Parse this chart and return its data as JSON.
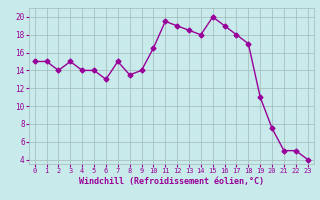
{
  "x": [
    0,
    1,
    2,
    3,
    4,
    5,
    6,
    7,
    8,
    9,
    10,
    11,
    12,
    13,
    14,
    15,
    16,
    17,
    18,
    19,
    20,
    21,
    22,
    23
  ],
  "y": [
    15,
    15,
    14,
    15,
    14,
    14,
    13,
    15,
    13.5,
    14,
    16.5,
    19.5,
    19,
    18.5,
    18,
    20,
    19,
    18,
    17,
    11,
    7.5,
    5,
    5,
    4
  ],
  "line_color": "#990099",
  "marker": "D",
  "marker_size": 2.5,
  "bg_color": "#c8eaea",
  "grid_color": "#a0b8b8",
  "xlabel": "Windchill (Refroidissement éolien,°C)",
  "xlabel_color": "#990099",
  "tick_color": "#990099",
  "ylim": [
    3.5,
    21
  ],
  "yticks": [
    4,
    6,
    8,
    10,
    12,
    14,
    16,
    18,
    20
  ],
  "xticks": [
    0,
    1,
    2,
    3,
    4,
    5,
    6,
    7,
    8,
    9,
    10,
    11,
    12,
    13,
    14,
    15,
    16,
    17,
    18,
    19,
    20,
    21,
    22,
    23
  ]
}
